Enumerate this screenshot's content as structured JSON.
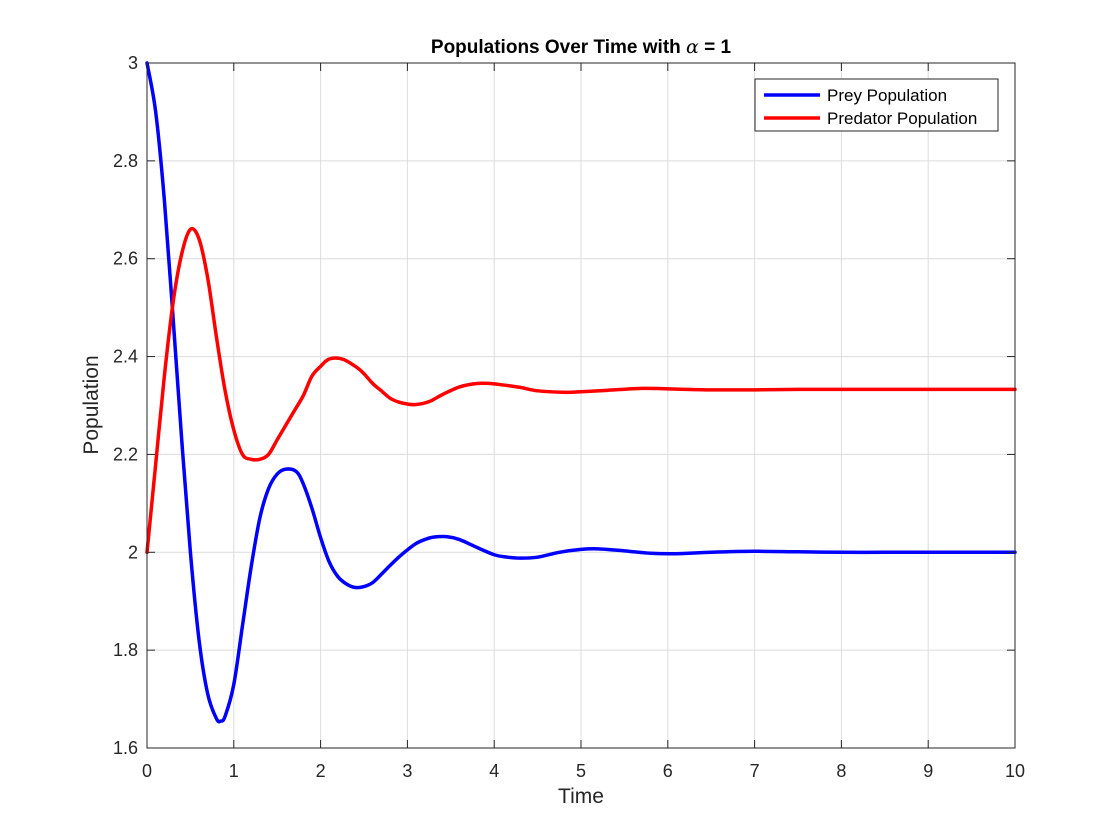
{
  "chart_data": {
    "type": "line",
    "title_prefix": "Populations Over Time with ",
    "title_symbol": "α",
    "title_suffix": " = 1",
    "xlabel": "Time",
    "ylabel": "Population",
    "xlim": [
      0,
      10
    ],
    "ylim": [
      1.6,
      3
    ],
    "xticks": [
      0,
      1,
      2,
      3,
      4,
      5,
      6,
      7,
      8,
      9,
      10
    ],
    "yticks": [
      1.6,
      1.8,
      2,
      2.2,
      2.4,
      2.6,
      2.8,
      3
    ],
    "xtick_labels": [
      "0",
      "1",
      "2",
      "3",
      "4",
      "5",
      "6",
      "7",
      "8",
      "9",
      "10"
    ],
    "ytick_labels": [
      "1.6",
      "1.8",
      "2",
      "2.2",
      "2.4",
      "2.6",
      "2.8",
      "3"
    ],
    "grid": true,
    "legend_position": "top-right",
    "series": [
      {
        "name": "Prey Population",
        "color": "#0000ff",
        "x": [
          0,
          0.1,
          0.2,
          0.3,
          0.4,
          0.5,
          0.6,
          0.7,
          0.8,
          0.85,
          0.9,
          1.0,
          1.1,
          1.2,
          1.3,
          1.4,
          1.5,
          1.6,
          1.72,
          1.8,
          1.9,
          2.0,
          2.1,
          2.2,
          2.3,
          2.4,
          2.5,
          2.6,
          2.7,
          2.8,
          2.9,
          3.0,
          3.1,
          3.2,
          3.3,
          3.45,
          3.6,
          3.8,
          4.0,
          4.15,
          4.3,
          4.5,
          4.75,
          5.0,
          5.2,
          5.5,
          5.8,
          6.1,
          6.5,
          7.0,
          7.5,
          8.0,
          8.5,
          9.0,
          9.5,
          10
        ],
        "y": [
          3.0,
          2.9,
          2.72,
          2.48,
          2.23,
          2.0,
          1.82,
          1.71,
          1.66,
          1.655,
          1.665,
          1.73,
          1.85,
          1.97,
          2.07,
          2.13,
          2.16,
          2.17,
          2.165,
          2.14,
          2.09,
          2.03,
          1.98,
          1.95,
          1.935,
          1.928,
          1.93,
          1.938,
          1.955,
          1.973,
          1.99,
          2.005,
          2.018,
          2.026,
          2.031,
          2.032,
          2.026,
          2.01,
          1.995,
          1.99,
          1.988,
          1.99,
          2.0,
          2.006,
          2.007,
          2.003,
          1.998,
          1.997,
          2.0,
          2.002,
          2.001,
          2.0,
          2.0,
          2.0,
          2.0,
          2.0
        ]
      },
      {
        "name": "Predator Population",
        "color": "#ff0000",
        "x": [
          0,
          0.1,
          0.2,
          0.3,
          0.4,
          0.5,
          0.6,
          0.7,
          0.8,
          0.9,
          1.0,
          1.1,
          1.2,
          1.3,
          1.4,
          1.5,
          1.6,
          1.7,
          1.8,
          1.9,
          2.0,
          2.1,
          2.25,
          2.4,
          2.5,
          2.6,
          2.7,
          2.8,
          2.9,
          3.0,
          3.1,
          3.25,
          3.4,
          3.6,
          3.8,
          3.95,
          4.1,
          4.3,
          4.5,
          4.8,
          5.0,
          5.3,
          5.7,
          6.0,
          6.5,
          7.0,
          7.5,
          8.0,
          8.5,
          9.0,
          9.5,
          10
        ],
        "y": [
          2.0,
          2.18,
          2.36,
          2.51,
          2.61,
          2.66,
          2.64,
          2.56,
          2.44,
          2.33,
          2.25,
          2.2,
          2.19,
          2.19,
          2.2,
          2.23,
          2.26,
          2.29,
          2.32,
          2.36,
          2.38,
          2.395,
          2.395,
          2.38,
          2.365,
          2.345,
          2.33,
          2.315,
          2.307,
          2.303,
          2.302,
          2.308,
          2.322,
          2.338,
          2.345,
          2.345,
          2.342,
          2.337,
          2.33,
          2.327,
          2.328,
          2.331,
          2.335,
          2.334,
          2.332,
          2.332,
          2.333,
          2.333,
          2.333,
          2.333,
          2.333,
          2.333
        ]
      }
    ]
  }
}
